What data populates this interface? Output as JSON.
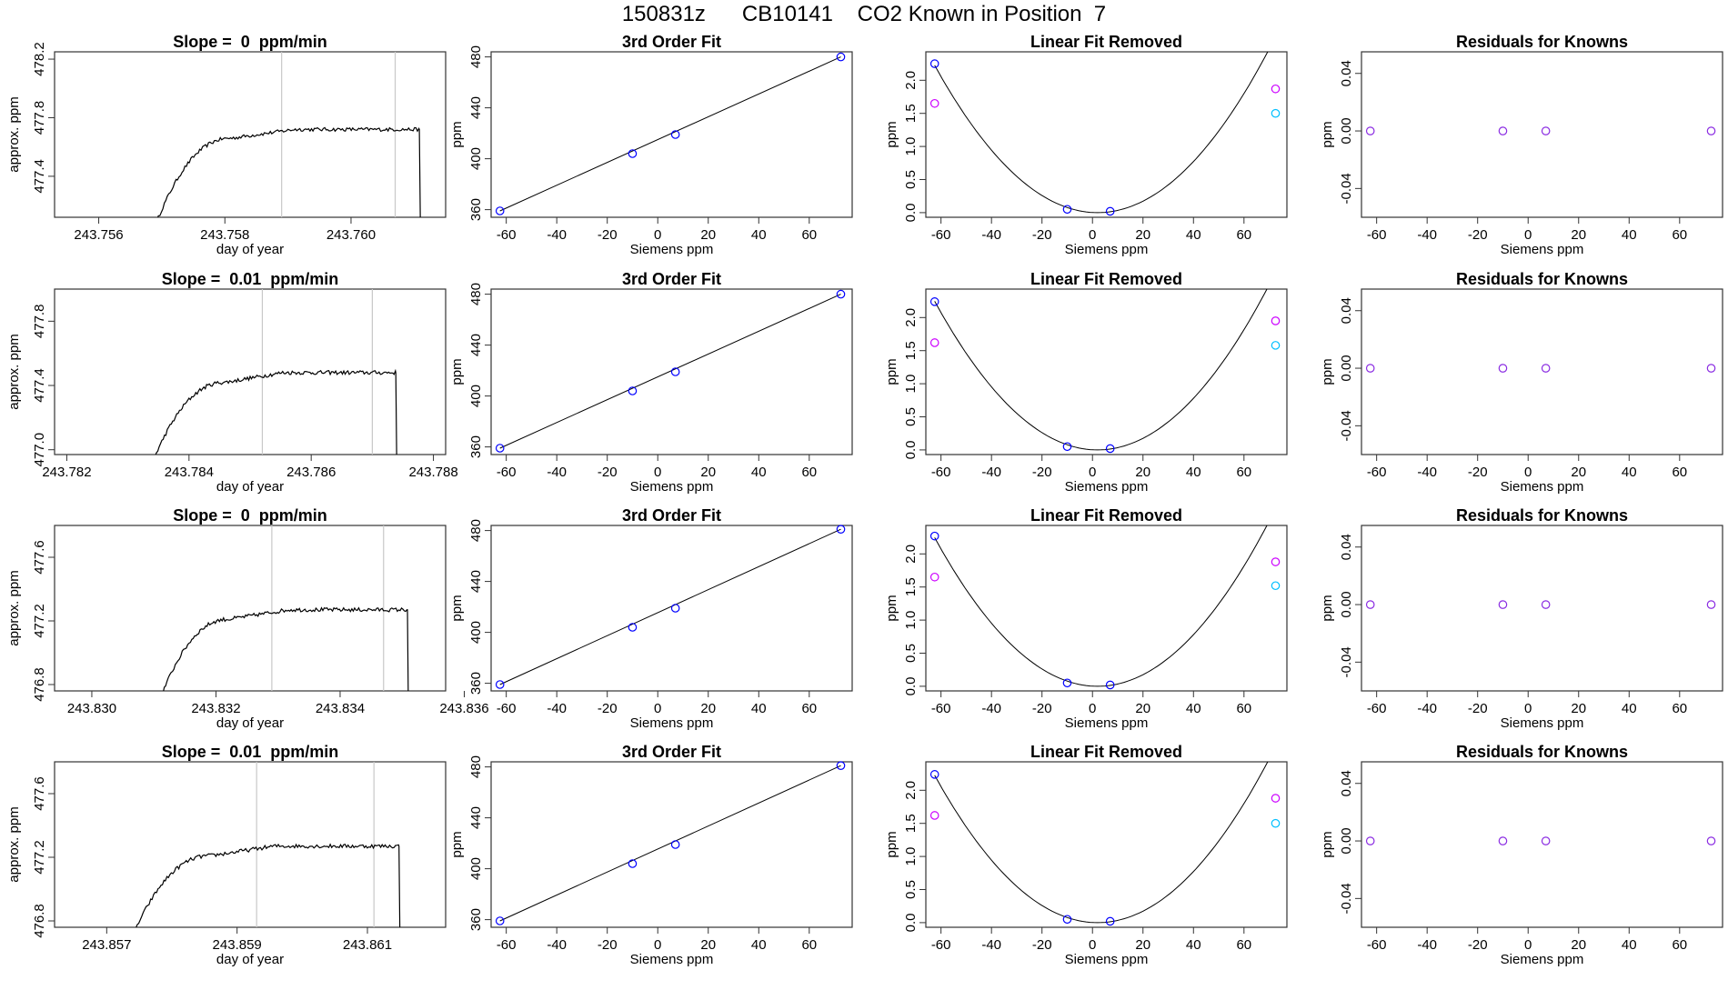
{
  "figure_title": "150831z      CB10141    CO2 Known in Position  7",
  "colors": {
    "trace": "#000000",
    "red_tick": "#e34a4a",
    "blue": "#0000ff",
    "magenta": "#cc00ff",
    "cyan": "#00bfff",
    "purple": "#8a2be2",
    "fit_line": "#000000",
    "vline": "#c8c8c8"
  },
  "chart_data": [
    {
      "type": "line",
      "row": 1,
      "title": "Slope =  0  ppm/min",
      "xlabel": "day of year",
      "ylabel": "approx. ppm",
      "xlim": [
        243.7553,
        243.7615
      ],
      "ylim": [
        477.12,
        478.25
      ],
      "xticks": [
        243.756,
        243.758,
        243.76
      ],
      "yticks": [
        477.4,
        477.8,
        478.2
      ],
      "vlines": [
        243.7589,
        243.7607
      ],
      "trace": {
        "start": 243.7569,
        "plateau_start": 243.7581,
        "end": 243.7611,
        "base": 477.72
      }
    },
    {
      "type": "scatter",
      "row": 1,
      "title": "3rd Order Fit",
      "xlabel": "Siemens ppm",
      "ylabel": "ppm",
      "xlim": [
        -66,
        77
      ],
      "ylim": [
        354,
        484
      ],
      "xticks": [
        -60,
        -40,
        -20,
        0,
        20,
        40,
        60
      ],
      "yticks": [
        360,
        400,
        440,
        480
      ],
      "points": [
        {
          "x": -62.5,
          "y": 359
        },
        {
          "x": -10,
          "y": 404
        },
        {
          "x": 7,
          "y": 419
        },
        {
          "x": 72.5,
          "y": 480
        }
      ]
    },
    {
      "type": "scatter",
      "row": 1,
      "title": "Linear Fit Removed",
      "xlabel": "Siemens ppm",
      "ylabel": "ppm",
      "xlim": [
        -66,
        77
      ],
      "ylim": [
        -0.07,
        2.43
      ],
      "xticks": [
        -60,
        -40,
        -20,
        0,
        20,
        40,
        60
      ],
      "yticks": [
        0.0,
        0.5,
        1.0,
        1.5,
        2.0
      ],
      "points": [
        {
          "x": -62.5,
          "y": 2.25,
          "c": "blue"
        },
        {
          "x": -62.5,
          "y": 1.65,
          "c": "magenta"
        },
        {
          "x": -10,
          "y": 0.05,
          "c": "blue"
        },
        {
          "x": 7,
          "y": 0.02,
          "c": "blue"
        },
        {
          "x": 72.5,
          "y": 1.87,
          "c": "magenta"
        },
        {
          "x": 72.5,
          "y": 1.5,
          "c": "cyan"
        }
      ],
      "curve": {
        "vertex": 2,
        "a": 0.000535
      }
    },
    {
      "type": "scatter",
      "row": 1,
      "title": "Residuals for Knowns",
      "xlabel": "Siemens ppm",
      "ylabel": "ppm",
      "xlim": [
        -66,
        77
      ],
      "ylim": [
        -0.06,
        0.055
      ],
      "xticks": [
        -60,
        -40,
        -20,
        0,
        20,
        40,
        60
      ],
      "yticks": [
        -0.04,
        0.0,
        0.04
      ],
      "points": [
        {
          "x": -62.5,
          "y": 0
        },
        {
          "x": -10,
          "y": 0
        },
        {
          "x": 7,
          "y": 0
        },
        {
          "x": 72.5,
          "y": 0
        }
      ]
    },
    {
      "type": "line",
      "row": 2,
      "title": "Slope =  0.01  ppm/min",
      "xlabel": "day of year",
      "ylabel": "approx. ppm",
      "xlim": [
        243.7818,
        243.7882
      ],
      "ylim": [
        476.97,
        478.0
      ],
      "xticks": [
        243.782,
        243.784,
        243.786,
        243.788
      ],
      "yticks": [
        477.0,
        477.4,
        477.8
      ],
      "vlines": [
        243.7852,
        243.787
      ],
      "trace": {
        "start": 243.7834,
        "plateau_start": 243.7846,
        "end": 243.7874,
        "base": 477.48
      }
    },
    {
      "type": "scatter",
      "row": 2,
      "title": "3rd Order Fit",
      "xlabel": "Siemens ppm",
      "ylabel": "ppm",
      "xlim": [
        -66,
        77
      ],
      "ylim": [
        354,
        484
      ],
      "xticks": [
        -60,
        -40,
        -20,
        0,
        20,
        40,
        60
      ],
      "yticks": [
        360,
        400,
        440,
        480
      ],
      "points": [
        {
          "x": -62.5,
          "y": 359
        },
        {
          "x": -10,
          "y": 404
        },
        {
          "x": 7,
          "y": 419
        },
        {
          "x": 72.5,
          "y": 480
        }
      ]
    },
    {
      "type": "scatter",
      "row": 2,
      "title": "Linear Fit Removed",
      "xlabel": "Siemens ppm",
      "ylabel": "ppm",
      "xlim": [
        -66,
        77
      ],
      "ylim": [
        -0.07,
        2.43
      ],
      "xticks": [
        -60,
        -40,
        -20,
        0,
        20,
        40,
        60
      ],
      "yticks": [
        0.0,
        0.5,
        1.0,
        1.5,
        2.0
      ],
      "points": [
        {
          "x": -62.5,
          "y": 2.24,
          "c": "blue"
        },
        {
          "x": -62.5,
          "y": 1.62,
          "c": "magenta"
        },
        {
          "x": -10,
          "y": 0.05,
          "c": "blue"
        },
        {
          "x": 7,
          "y": 0.02,
          "c": "blue"
        },
        {
          "x": 72.5,
          "y": 1.95,
          "c": "magenta"
        },
        {
          "x": 72.5,
          "y": 1.58,
          "c": "cyan"
        }
      ],
      "curve": {
        "vertex": 2,
        "a": 0.00054
      }
    },
    {
      "type": "scatter",
      "row": 2,
      "title": "Residuals for Knowns",
      "xlabel": "Siemens ppm",
      "ylabel": "ppm",
      "xlim": [
        -66,
        77
      ],
      "ylim": [
        -0.06,
        0.055
      ],
      "xticks": [
        -60,
        -40,
        -20,
        0,
        20,
        40,
        60
      ],
      "yticks": [
        -0.04,
        0.0,
        0.04
      ],
      "points": [
        {
          "x": -62.5,
          "y": 0
        },
        {
          "x": -10,
          "y": 0
        },
        {
          "x": 7,
          "y": 0
        },
        {
          "x": 72.5,
          "y": 0
        }
      ]
    },
    {
      "type": "line",
      "row": 3,
      "title": "Slope =  0  ppm/min",
      "xlabel": "day of year",
      "ylabel": "approx. ppm",
      "xlim": [
        243.8294,
        243.8357
      ],
      "ylim": [
        476.76,
        477.8
      ],
      "xticks": [
        243.83,
        243.832,
        243.834,
        243.836
      ],
      "yticks": [
        476.8,
        477.2,
        477.6
      ],
      "vlines": [
        243.8329,
        243.8347
      ],
      "trace": {
        "start": 243.8311,
        "plateau_start": 243.8322,
        "end": 243.8351,
        "base": 477.27
      }
    },
    {
      "type": "scatter",
      "row": 3,
      "title": "3rd Order Fit",
      "xlabel": "Siemens ppm",
      "ylabel": "ppm",
      "xlim": [
        -66,
        77
      ],
      "ylim": [
        354,
        484
      ],
      "xticks": [
        -60,
        -40,
        -20,
        0,
        20,
        40,
        60
      ],
      "yticks": [
        360,
        400,
        440,
        480
      ],
      "points": [
        {
          "x": -62.5,
          "y": 359
        },
        {
          "x": -10,
          "y": 404
        },
        {
          "x": 7,
          "y": 419
        },
        {
          "x": 72.5,
          "y": 481
        }
      ]
    },
    {
      "type": "scatter",
      "row": 3,
      "title": "Linear Fit Removed",
      "xlabel": "Siemens ppm",
      "ylabel": "ppm",
      "xlim": [
        -66,
        77
      ],
      "ylim": [
        -0.07,
        2.43
      ],
      "xticks": [
        -60,
        -40,
        -20,
        0,
        20,
        40,
        60
      ],
      "yticks": [
        0.0,
        0.5,
        1.0,
        1.5,
        2.0
      ],
      "points": [
        {
          "x": -62.5,
          "y": 2.27,
          "c": "blue"
        },
        {
          "x": -62.5,
          "y": 1.65,
          "c": "magenta"
        },
        {
          "x": -10,
          "y": 0.05,
          "c": "blue"
        },
        {
          "x": 7,
          "y": 0.02,
          "c": "blue"
        },
        {
          "x": 72.5,
          "y": 1.88,
          "c": "magenta"
        },
        {
          "x": 72.5,
          "y": 1.52,
          "c": "cyan"
        }
      ],
      "curve": {
        "vertex": 2,
        "a": 0.00054
      }
    },
    {
      "type": "scatter",
      "row": 3,
      "title": "Residuals for Knowns",
      "xlabel": "Siemens ppm",
      "ylabel": "ppm",
      "xlim": [
        -66,
        77
      ],
      "ylim": [
        -0.06,
        0.055
      ],
      "xticks": [
        -60,
        -40,
        -20,
        0,
        20,
        40,
        60
      ],
      "yticks": [
        -0.04,
        0.0,
        0.04
      ],
      "points": [
        {
          "x": -62.5,
          "y": 0
        },
        {
          "x": -10,
          "y": 0
        },
        {
          "x": 7,
          "y": 0
        },
        {
          "x": 72.5,
          "y": 0
        }
      ]
    },
    {
      "type": "line",
      "row": 4,
      "title": "Slope =  0.01  ppm/min",
      "xlabel": "day of year",
      "ylabel": "approx. ppm",
      "xlim": [
        243.8562,
        243.8622
      ],
      "ylim": [
        476.76,
        477.8
      ],
      "xticks": [
        243.857,
        243.859,
        243.861
      ],
      "yticks": [
        476.8,
        477.2,
        477.6
      ],
      "vlines": [
        243.8593,
        243.8611
      ],
      "trace": {
        "start": 243.8574,
        "plateau_start": 243.8586,
        "end": 243.8615,
        "base": 477.27
      }
    },
    {
      "type": "scatter",
      "row": 4,
      "title": "3rd Order Fit",
      "xlabel": "Siemens ppm",
      "ylabel": "ppm",
      "xlim": [
        -66,
        77
      ],
      "ylim": [
        354,
        484
      ],
      "xticks": [
        -60,
        -40,
        -20,
        0,
        20,
        40,
        60
      ],
      "yticks": [
        360,
        400,
        440,
        480
      ],
      "points": [
        {
          "x": -62.5,
          "y": 359
        },
        {
          "x": -10,
          "y": 404
        },
        {
          "x": 7,
          "y": 419
        },
        {
          "x": 72.5,
          "y": 481
        }
      ]
    },
    {
      "type": "scatter",
      "row": 4,
      "title": "Linear Fit Removed",
      "xlabel": "Siemens ppm",
      "ylabel": "ppm",
      "xlim": [
        -66,
        77
      ],
      "ylim": [
        -0.07,
        2.43
      ],
      "xticks": [
        -60,
        -40,
        -20,
        0,
        20,
        40,
        60
      ],
      "yticks": [
        0.0,
        0.5,
        1.0,
        1.5,
        2.0
      ],
      "points": [
        {
          "x": -62.5,
          "y": 2.24,
          "c": "blue"
        },
        {
          "x": -62.5,
          "y": 1.62,
          "c": "magenta"
        },
        {
          "x": -10,
          "y": 0.05,
          "c": "blue"
        },
        {
          "x": 7,
          "y": 0.02,
          "c": "blue"
        },
        {
          "x": 72.5,
          "y": 1.88,
          "c": "magenta"
        },
        {
          "x": 72.5,
          "y": 1.5,
          "c": "cyan"
        }
      ],
      "curve": {
        "vertex": 2,
        "a": 0.000535
      }
    },
    {
      "type": "scatter",
      "row": 4,
      "title": "Residuals for Knowns",
      "xlabel": "Siemens ppm",
      "ylabel": "ppm",
      "xlim": [
        -66,
        77
      ],
      "ylim": [
        -0.06,
        0.055
      ],
      "xticks": [
        -60,
        -40,
        -20,
        0,
        20,
        40,
        60
      ],
      "yticks": [
        -0.04,
        0.0,
        0.04
      ],
      "points": [
        {
          "x": -62.5,
          "y": 0
        },
        {
          "x": -10,
          "y": 0
        },
        {
          "x": 7,
          "y": 0
        },
        {
          "x": 72.5,
          "y": 0
        }
      ]
    }
  ]
}
